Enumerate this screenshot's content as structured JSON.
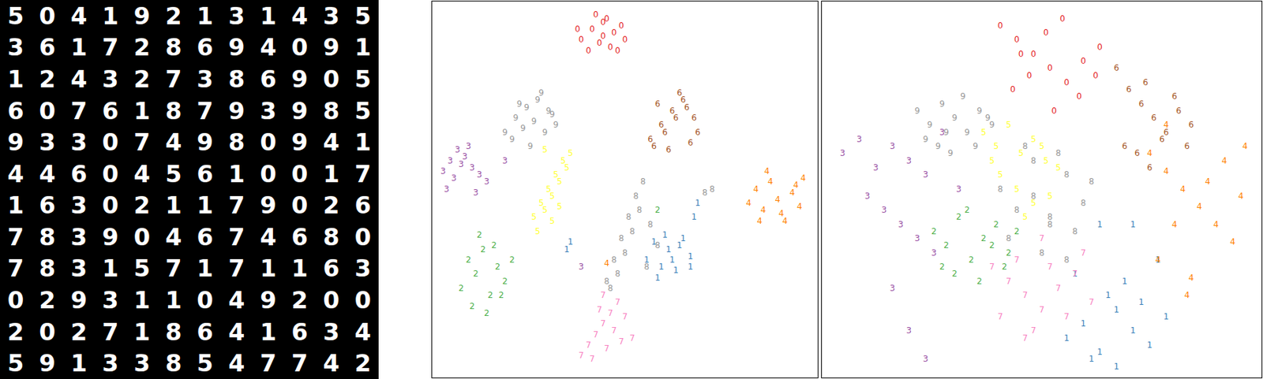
{
  "grid": {
    "rows": [
      [
        "5",
        "0",
        "4",
        "1",
        "9",
        "2",
        "1",
        "3",
        "1",
        "4",
        "3",
        "5"
      ],
      [
        "3",
        "6",
        "1",
        "7",
        "2",
        "8",
        "6",
        "9",
        "4",
        "0",
        "9",
        "1"
      ],
      [
        "1",
        "2",
        "4",
        "3",
        "2",
        "7",
        "3",
        "8",
        "6",
        "9",
        "0",
        "5"
      ],
      [
        "6",
        "0",
        "7",
        "6",
        "1",
        "8",
        "7",
        "9",
        "3",
        "9",
        "8",
        "5"
      ],
      [
        "9",
        "3",
        "3",
        "0",
        "7",
        "4",
        "9",
        "8",
        "0",
        "9",
        "4",
        "1"
      ],
      [
        "4",
        "4",
        "6",
        "0",
        "4",
        "5",
        "6",
        "1",
        "0",
        "0",
        "1",
        "7"
      ],
      [
        "1",
        "6",
        "3",
        "0",
        "2",
        "1",
        "1",
        "7",
        "9",
        "0",
        "2",
        "6"
      ],
      [
        "7",
        "8",
        "3",
        "9",
        "0",
        "4",
        "6",
        "7",
        "4",
        "6",
        "8",
        "0"
      ],
      [
        "7",
        "8",
        "3",
        "1",
        "5",
        "7",
        "1",
        "7",
        "1",
        "1",
        "6",
        "3"
      ],
      [
        "0",
        "2",
        "9",
        "3",
        "1",
        "1",
        "0",
        "4",
        "9",
        "2",
        "0",
        "0"
      ],
      [
        "2",
        "0",
        "2",
        "7",
        "1",
        "8",
        "6",
        "4",
        "1",
        "6",
        "3",
        "4"
      ],
      [
        "5",
        "9",
        "1",
        "3",
        "3",
        "8",
        "5",
        "4",
        "7",
        "7",
        "4",
        "2"
      ]
    ]
  },
  "chart_data": [
    {
      "type": "scatter",
      "marker": "text",
      "tick_labels": false,
      "grid": false,
      "xlim": [
        -3,
        103
      ],
      "ylim": [
        -3,
        103
      ],
      "series": [
        {
          "name": "0",
          "color": "#e41a1c",
          "x": [
            38,
            41,
            44,
            47,
            50,
            40,
            43,
            46,
            49,
            42,
            45,
            37,
            48,
            44
          ],
          "y": [
            92,
            95,
            97,
            94,
            92,
            89,
            91,
            90,
            96,
            99,
            98,
            95,
            89,
            93
          ]
        },
        {
          "name": "1",
          "color": "#377eb8",
          "x": [
            56,
            58,
            60,
            62,
            64,
            66,
            68,
            59,
            61,
            63,
            65,
            68,
            69,
            70,
            34,
            35
          ],
          "y": [
            30,
            35,
            28,
            33,
            27,
            36,
            31,
            25,
            37,
            30,
            34,
            28,
            42,
            46,
            33,
            35
          ]
        },
        {
          "name": "2",
          "color": "#4daf4a",
          "x": [
            5,
            7,
            9,
            11,
            13,
            15,
            17,
            19,
            8,
            10,
            12,
            14,
            16,
            59
          ],
          "y": [
            22,
            30,
            26,
            33,
            20,
            28,
            24,
            30,
            17,
            37,
            15,
            34,
            20,
            44
          ]
        },
        {
          "name": "3",
          "color": "#984ea3",
          "x": [
            0,
            2,
            4,
            6,
            8,
            10,
            12,
            1,
            3,
            5,
            7,
            9,
            17,
            38
          ],
          "y": [
            55,
            58,
            61,
            59,
            56,
            54,
            52,
            50,
            53,
            57,
            62,
            49,
            58,
            28
          ]
        },
        {
          "name": "4",
          "color": "#ff7f00",
          "x": [
            84,
            86,
            88,
            90,
            92,
            94,
            96,
            98,
            99,
            87,
            89,
            93,
            97,
            45
          ],
          "y": [
            46,
            50,
            44,
            52,
            47,
            41,
            49,
            45,
            53,
            41,
            55,
            43,
            51,
            29
          ]
        },
        {
          "name": "5",
          "color": "#ffff33",
          "x": [
            25,
            27,
            29,
            31,
            33,
            35,
            26,
            28,
            30,
            32,
            34,
            30,
            28,
            32
          ],
          "y": [
            42,
            46,
            50,
            54,
            58,
            60,
            38,
            44,
            48,
            52,
            56,
            41,
            61,
            45
          ]
        },
        {
          "name": "6",
          "color": "#a65628",
          "x": [
            57,
            60,
            63,
            66,
            69,
            58,
            61,
            64,
            67,
            70,
            62,
            65,
            59,
            68
          ],
          "y": [
            64,
            68,
            72,
            75,
            70,
            62,
            66,
            70,
            73,
            66,
            61,
            77,
            74,
            63
          ]
        },
        {
          "name": "7",
          "color": "#f781bf",
          "x": [
            38,
            40,
            42,
            44,
            46,
            48,
            50,
            52,
            41,
            43,
            45,
            47,
            49,
            44
          ],
          "y": [
            3,
            6,
            9,
            12,
            15,
            18,
            14,
            8,
            2,
            16,
            5,
            10,
            7,
            20
          ]
        },
        {
          "name": "8",
          "color": "#999999",
          "x": [
            45,
            47,
            49,
            51,
            53,
            55,
            57,
            59,
            48,
            50,
            52,
            54,
            56,
            72,
            74,
            46
          ],
          "y": [
            24,
            30,
            36,
            42,
            48,
            52,
            40,
            34,
            26,
            32,
            38,
            44,
            28,
            49,
            50,
            22
          ]
        },
        {
          "name": "9",
          "color": "#999999",
          "x": [
            17,
            20,
            23,
            26,
            29,
            31,
            19,
            22,
            25,
            28,
            24,
            21,
            27,
            30
          ],
          "y": [
            66,
            70,
            73,
            75,
            72,
            68,
            64,
            67,
            69,
            66,
            62,
            74,
            77,
            71
          ]
        }
      ]
    },
    {
      "type": "scatter",
      "marker": "text",
      "tick_labels": false,
      "grid": false,
      "xlim": [
        -3,
        103
      ],
      "ylim": [
        -3,
        103
      ],
      "series": [
        {
          "name": "0",
          "color": "#e41a1c",
          "x": [
            40,
            44,
            48,
            52,
            56,
            60,
            64,
            43,
            47,
            51,
            55,
            59,
            63,
            45,
            53
          ],
          "y": [
            96,
            92,
            88,
            84,
            80,
            86,
            90,
            78,
            82,
            94,
            98,
            76,
            82,
            88,
            72
          ]
        },
        {
          "name": "1",
          "color": "#377eb8",
          "x": [
            56,
            60,
            64,
            68,
            72,
            76,
            80,
            62,
            66,
            70,
            74,
            78,
            58,
            64,
            72,
            68
          ],
          "y": [
            8,
            12,
            4,
            16,
            10,
            6,
            14,
            2,
            20,
            24,
            18,
            30,
            26,
            40,
            40,
            0
          ]
        },
        {
          "name": "2",
          "color": "#4daf4a",
          "x": [
            24,
            27,
            30,
            33,
            36,
            39,
            42,
            26,
            29,
            32,
            35,
            38,
            41,
            44
          ],
          "y": [
            38,
            34,
            42,
            30,
            36,
            40,
            32,
            28,
            26,
            44,
            24,
            34,
            28,
            38
          ]
        },
        {
          "name": "3",
          "color": "#984ea3",
          "x": [
            2,
            6,
            10,
            14,
            18,
            22,
            26,
            8,
            12,
            16,
            20,
            24,
            14,
            18,
            22,
            30
          ],
          "y": [
            60,
            64,
            56,
            62,
            58,
            54,
            66,
            48,
            44,
            40,
            36,
            32,
            22,
            10,
            2,
            50
          ]
        },
        {
          "name": "4",
          "color": "#ff7f00",
          "x": [
            76,
            80,
            84,
            88,
            92,
            96,
            99,
            78,
            82,
            86,
            90,
            94,
            98,
            85,
            80
          ],
          "y": [
            60,
            55,
            50,
            45,
            40,
            35,
            62,
            30,
            40,
            25,
            52,
            58,
            48,
            20,
            68
          ]
        },
        {
          "name": "5",
          "color": "#ffff33",
          "x": [
            36,
            39,
            42,
            45,
            48,
            51,
            54,
            40,
            44,
            48,
            52,
            38,
            46,
            50
          ],
          "y": [
            66,
            62,
            68,
            60,
            64,
            58,
            56,
            54,
            50,
            46,
            48,
            58,
            42,
            62
          ]
        },
        {
          "name": "6",
          "color": "#a65628",
          "x": [
            68,
            71,
            74,
            77,
            80,
            83,
            86,
            70,
            73,
            76,
            79,
            82,
            85,
            75
          ],
          "y": [
            84,
            78,
            74,
            70,
            66,
            72,
            68,
            62,
            60,
            56,
            64,
            76,
            62,
            80
          ]
        },
        {
          "name": "7",
          "color": "#f781bf",
          "x": [
            38,
            42,
            46,
            50,
            54,
            58,
            62,
            40,
            44,
            48,
            52,
            56,
            60,
            46,
            50
          ],
          "y": [
            28,
            24,
            20,
            16,
            22,
            26,
            18,
            14,
            30,
            10,
            28,
            14,
            32,
            8,
            36
          ]
        },
        {
          "name": "8",
          "color": "#999999",
          "x": [
            40,
            44,
            48,
            52,
            56,
            60,
            42,
            46,
            50,
            54,
            58,
            62,
            48,
            52,
            56
          ],
          "y": [
            50,
            44,
            58,
            40,
            54,
            46,
            36,
            62,
            32,
            60,
            38,
            52,
            48,
            42,
            30
          ]
        },
        {
          "name": "9",
          "color": "#999999",
          "x": [
            20,
            23,
            26,
            29,
            32,
            35,
            38,
            22,
            25,
            28,
            31,
            34,
            37,
            27
          ],
          "y": [
            72,
            68,
            74,
            70,
            66,
            72,
            68,
            64,
            62,
            60,
            76,
            62,
            70,
            66
          ]
        }
      ]
    }
  ]
}
